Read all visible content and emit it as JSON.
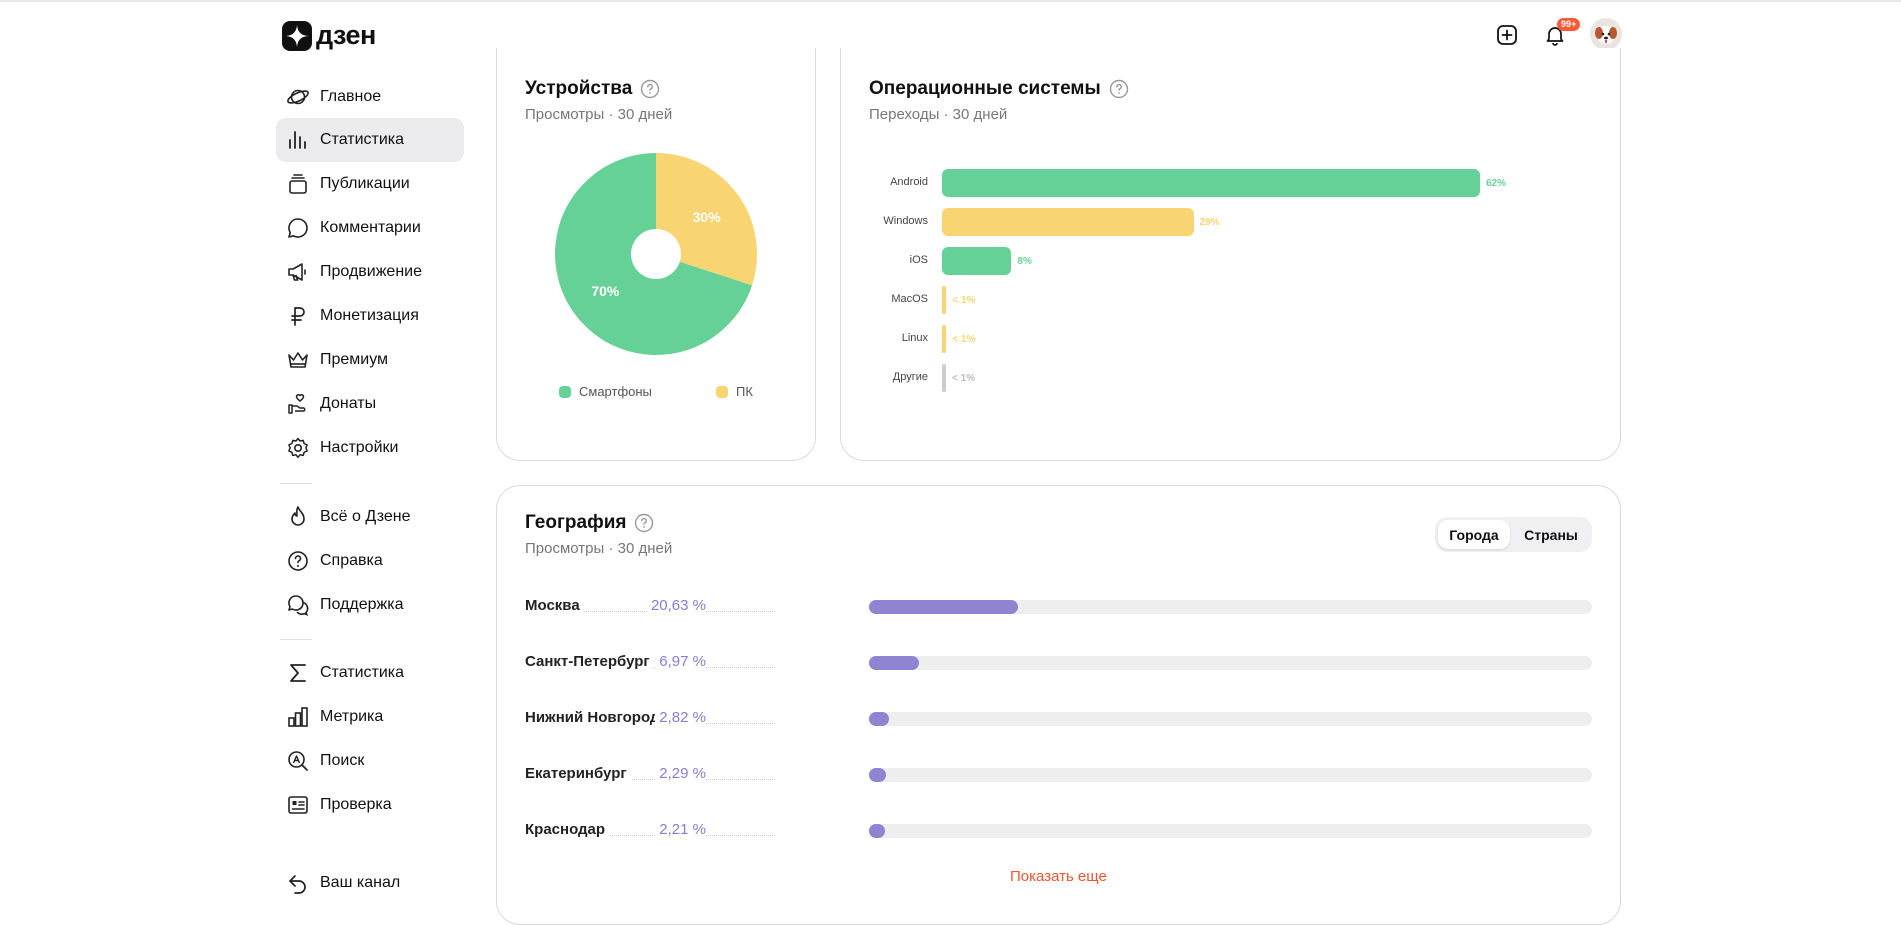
{
  "header": {
    "logo_text": "дзен",
    "notifications_badge": "99+"
  },
  "sidebar": {
    "primary": [
      {
        "label": "Главное",
        "icon": "planet-icon"
      },
      {
        "label": "Статистика",
        "icon": "bar-chart-icon",
        "active": true
      },
      {
        "label": "Публикации",
        "icon": "stack-icon"
      },
      {
        "label": "Комментарии",
        "icon": "comment-icon"
      },
      {
        "label": "Продвижение",
        "icon": "megaphone-icon"
      },
      {
        "label": "Монетизация",
        "icon": "ruble-icon"
      },
      {
        "label": "Премиум",
        "icon": "crown-icon"
      },
      {
        "label": "Донаты",
        "icon": "donate-hand-icon"
      },
      {
        "label": "Настройки",
        "icon": "gear-icon"
      }
    ],
    "secondary": [
      {
        "label": "Всё о Дзене",
        "icon": "flame-icon"
      },
      {
        "label": "Справка",
        "icon": "question-icon"
      },
      {
        "label": "Поддержка",
        "icon": "chat-bubbles-icon"
      }
    ],
    "tools": [
      {
        "label": "Статистика",
        "icon": "sigma-icon"
      },
      {
        "label": "Метрика",
        "icon": "metrics-icon"
      },
      {
        "label": "Поиск",
        "icon": "search-a-icon"
      },
      {
        "label": "Проверка",
        "icon": "check-card-icon"
      }
    ],
    "channel": {
      "label": "Ваш канал",
      "icon": "back-arrow-icon"
    }
  },
  "devices": {
    "title": "Устройства",
    "subtitle": "Просмотры · 30 дней",
    "slices": [
      {
        "name": "Смартфоны",
        "value": 70,
        "label": "70%",
        "color": "#66d197"
      },
      {
        "name": "ПК",
        "value": 30,
        "label": "30%",
        "color": "#f8d472"
      }
    ]
  },
  "os": {
    "title": "Операционные системы",
    "subtitle": "Переходы · 30 дней",
    "items": [
      {
        "name": "Android",
        "value": 62,
        "label": "62%",
        "color": "#66d197"
      },
      {
        "name": "Windows",
        "value": 29,
        "label": "29%",
        "color": "#f8d472"
      },
      {
        "name": "iOS",
        "value": 8,
        "label": "8%",
        "color": "#66d197"
      },
      {
        "name": "MacOS",
        "value": 0.5,
        "label": "< 1%",
        "color": "#f8d472"
      },
      {
        "name": "Linux",
        "value": 0.5,
        "label": "< 1%",
        "color": "#f8d472"
      },
      {
        "name": "Другие",
        "value": 0.3,
        "label": "< 1%",
        "color": "#cccccc"
      }
    ]
  },
  "geo": {
    "title": "География",
    "subtitle": "Просмотры · 30 дней",
    "tabs": [
      "Города",
      "Страны"
    ],
    "active_tab": 0,
    "rows": [
      {
        "city": "Москва",
        "pct": "20,63 %",
        "value": 20.63
      },
      {
        "city": "Санкт-Петербург",
        "pct": "6,97 %",
        "value": 6.97
      },
      {
        "city": "Нижний Новгород",
        "pct": "2,82 %",
        "value": 2.82
      },
      {
        "city": "Екатеринбург",
        "pct": "2,29 %",
        "value": 2.29
      },
      {
        "city": "Краснодар",
        "pct": "2,21 %",
        "value": 2.21
      }
    ],
    "show_more": "Показать еще"
  },
  "chart_data": [
    {
      "type": "pie",
      "title": "Устройства",
      "categories": [
        "Смартфоны",
        "ПК"
      ],
      "values": [
        70,
        30
      ]
    },
    {
      "type": "bar",
      "title": "Операционные системы",
      "categories": [
        "Android",
        "Windows",
        "iOS",
        "MacOS",
        "Linux",
        "Другие"
      ],
      "values": [
        62,
        29,
        8,
        0.5,
        0.5,
        0.3
      ]
    },
    {
      "type": "bar",
      "title": "География",
      "categories": [
        "Москва",
        "Санкт-Петербург",
        "Нижний Новгород",
        "Екатеринбург",
        "Краснодар"
      ],
      "values": [
        20.63,
        6.97,
        2.82,
        2.29,
        2.21
      ]
    }
  ]
}
